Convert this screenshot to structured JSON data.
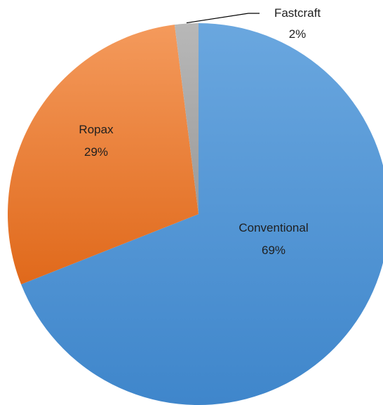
{
  "chart_data": {
    "type": "pie",
    "categories": [
      "Conventional",
      "Ropax",
      "Fastcraft"
    ],
    "values": [
      69,
      29,
      2
    ],
    "value_labels": [
      "69%",
      "29%",
      "2%"
    ],
    "colors": [
      "#5b9bd5",
      "#ed7d31",
      "#a5a5a5"
    ],
    "title": "",
    "legend": "none",
    "start": "12 o'clock, clockwise"
  }
}
